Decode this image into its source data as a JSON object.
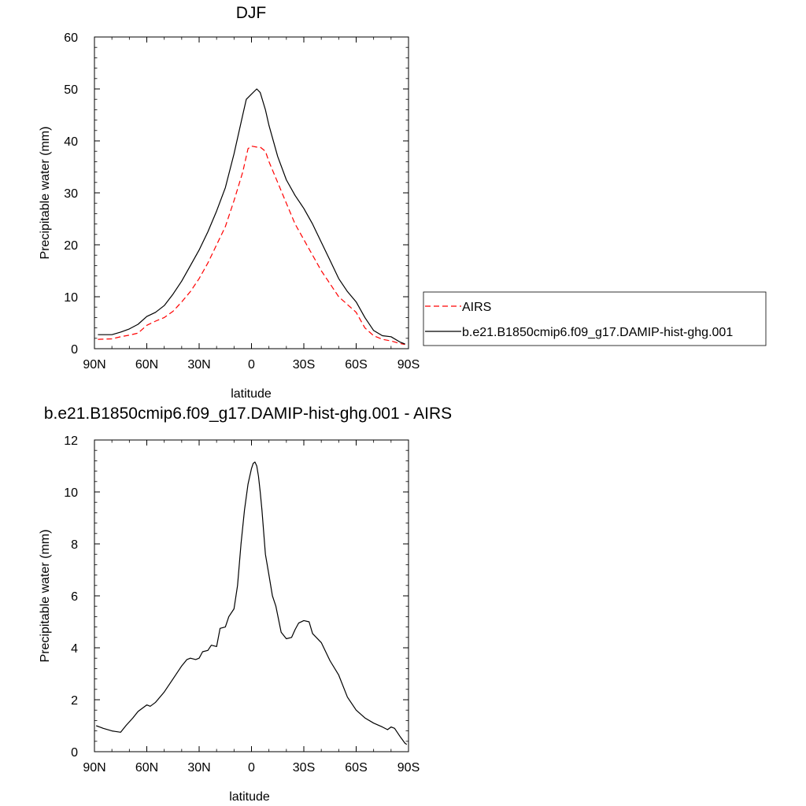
{
  "chart_data": [
    {
      "type": "line",
      "title": "DJF",
      "xlabel": "latitude",
      "ylabel": "Precipitable water (mm)",
      "xlim": [
        -90,
        90
      ],
      "ylim": [
        0,
        60
      ],
      "xticks": [
        {
          "value": -90,
          "label": "90N"
        },
        {
          "value": -60,
          "label": "60N"
        },
        {
          "value": -30,
          "label": "30N"
        },
        {
          "value": 0,
          "label": "0"
        },
        {
          "value": 30,
          "label": "30S"
        },
        {
          "value": 60,
          "label": "60S"
        },
        {
          "value": 90,
          "label": "90S"
        }
      ],
      "yticks": [
        0,
        10,
        20,
        30,
        40,
        50,
        60
      ],
      "legend_position": "right",
      "series": [
        {
          "name": "AIRS",
          "color": "#ff0000",
          "style": "dashed",
          "x": [
            -88,
            -80,
            -75,
            -70,
            -65,
            -60,
            -55,
            -50,
            -45,
            -40,
            -35,
            -30,
            -25,
            -20,
            -15,
            -10,
            -5,
            -2,
            0,
            3,
            5,
            8,
            10,
            15,
            20,
            25,
            30,
            35,
            40,
            45,
            50,
            55,
            60,
            65,
            70,
            75,
            80,
            85,
            88
          ],
          "y": [
            1.8,
            1.9,
            2.3,
            2.6,
            3.0,
            4.5,
            5.3,
            6.0,
            7.2,
            9.0,
            11.0,
            13.5,
            16.5,
            20.0,
            23.5,
            28.5,
            34.0,
            38.5,
            39.0,
            38.8,
            38.8,
            38.0,
            36.0,
            32.0,
            28.0,
            24.0,
            21.0,
            18.0,
            15.0,
            12.5,
            10.0,
            8.5,
            7.0,
            4.0,
            2.5,
            1.8,
            1.5,
            1.0,
            0.8
          ]
        },
        {
          "name": "b.e21.B1850cmip6.f09_g17.DAMIP-hist-ghg.001",
          "color": "#000000",
          "style": "solid",
          "x": [
            -88,
            -80,
            -75,
            -70,
            -65,
            -60,
            -55,
            -50,
            -45,
            -40,
            -35,
            -30,
            -25,
            -20,
            -15,
            -10,
            -5,
            -3,
            0,
            3,
            5,
            8,
            10,
            15,
            20,
            25,
            30,
            35,
            40,
            45,
            50,
            55,
            60,
            65,
            70,
            75,
            80,
            85,
            88
          ],
          "y": [
            2.7,
            2.7,
            3.2,
            3.8,
            4.7,
            6.2,
            7.0,
            8.3,
            10.5,
            13.0,
            16.0,
            19.0,
            22.5,
            26.5,
            31.0,
            37.5,
            45.0,
            48.0,
            49.0,
            50.0,
            49.3,
            46.0,
            43.0,
            37.0,
            32.5,
            29.5,
            27.0,
            24.0,
            20.5,
            17.0,
            13.5,
            11.0,
            9.0,
            6.0,
            3.5,
            2.5,
            2.3,
            1.3,
            0.9
          ]
        }
      ]
    },
    {
      "type": "line",
      "title": "b.e21.B1850cmip6.f09_g17.DAMIP-hist-ghg.001 - AIRS",
      "xlabel": "latitude",
      "ylabel": "Precipitable water (mm)",
      "xlim": [
        -90,
        90
      ],
      "ylim": [
        0,
        12
      ],
      "xticks": [
        {
          "value": -90,
          "label": "90N"
        },
        {
          "value": -60,
          "label": "60N"
        },
        {
          "value": -30,
          "label": "30N"
        },
        {
          "value": 0,
          "label": "0"
        },
        {
          "value": 30,
          "label": "30S"
        },
        {
          "value": 60,
          "label": "60S"
        },
        {
          "value": 90,
          "label": "90S"
        }
      ],
      "yticks": [
        0,
        2,
        4,
        6,
        8,
        10,
        12
      ],
      "series": [
        {
          "color": "#000000",
          "style": "solid",
          "x": [
            -89,
            -85,
            -80,
            -78,
            -75,
            -72,
            -68,
            -65,
            -62,
            -60,
            -58,
            -55,
            -50,
            -45,
            -40,
            -37,
            -35,
            -32,
            -30,
            -28,
            -25,
            -23,
            -20,
            -18,
            -15,
            -13,
            -10,
            -8,
            -6,
            -4,
            -2,
            0,
            1,
            2,
            3,
            4,
            5,
            6,
            8,
            10,
            12,
            14,
            17,
            20,
            23,
            25,
            27,
            30,
            33,
            35,
            40,
            45,
            50,
            55,
            60,
            65,
            70,
            75,
            78,
            80,
            82,
            85,
            88,
            89
          ],
          "y": [
            1.0,
            0.9,
            0.8,
            0.78,
            0.75,
            1.0,
            1.3,
            1.55,
            1.7,
            1.8,
            1.75,
            1.9,
            2.3,
            2.8,
            3.3,
            3.55,
            3.6,
            3.55,
            3.6,
            3.85,
            3.9,
            4.1,
            4.05,
            4.75,
            4.8,
            5.2,
            5.5,
            6.4,
            8.0,
            9.3,
            10.3,
            10.9,
            11.1,
            11.15,
            11.0,
            10.6,
            10.0,
            9.3,
            7.6,
            6.8,
            6.0,
            5.6,
            4.6,
            4.35,
            4.4,
            4.7,
            4.95,
            5.05,
            5.0,
            4.55,
            4.2,
            3.5,
            2.95,
            2.1,
            1.6,
            1.3,
            1.1,
            0.95,
            0.85,
            0.95,
            0.9,
            0.6,
            0.32,
            0.28
          ]
        }
      ]
    }
  ]
}
